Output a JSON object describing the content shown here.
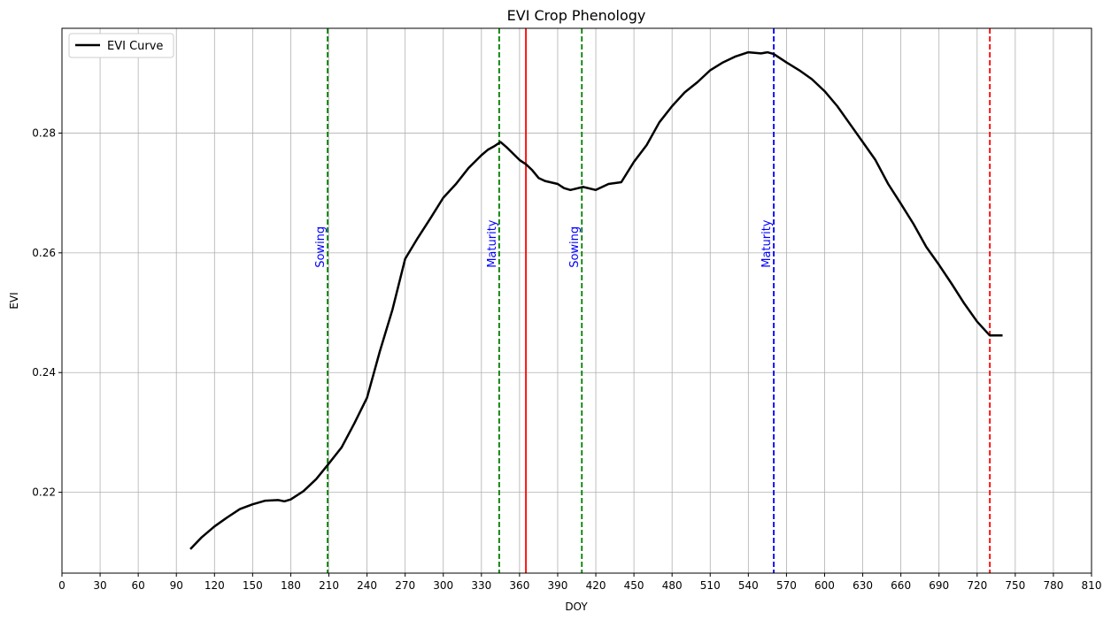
{
  "chart_data": {
    "type": "line",
    "title": "EVI Crop Phenology",
    "xlabel": "DOY",
    "ylabel": "EVI",
    "xlim": [
      0,
      810
    ],
    "ylim": [
      0.2065,
      0.2975
    ],
    "grid": true,
    "legend_position": "top-left",
    "x_ticks": [
      0,
      30,
      60,
      90,
      120,
      150,
      180,
      210,
      240,
      270,
      300,
      330,
      360,
      390,
      420,
      450,
      480,
      510,
      540,
      570,
      600,
      630,
      660,
      690,
      720,
      750,
      780,
      810
    ],
    "y_ticks": [
      0.22,
      0.24,
      0.26,
      0.28
    ],
    "y_tick_labels": [
      "0.22",
      "0.24",
      "0.26",
      "0.28"
    ],
    "series": [
      {
        "name": "EVI Curve",
        "color": "#000000",
        "x": [
          101,
          110,
          120,
          130,
          140,
          150,
          160,
          170,
          175,
          180,
          190,
          200,
          210,
          220,
          230,
          240,
          250,
          260,
          270,
          280,
          290,
          300,
          310,
          320,
          330,
          335,
          340,
          345,
          350,
          360,
          365,
          370,
          375,
          380,
          390,
          395,
          400,
          410,
          420,
          430,
          440,
          450,
          460,
          470,
          480,
          490,
          500,
          510,
          520,
          530,
          540,
          545,
          550,
          555,
          560,
          570,
          580,
          590,
          600,
          610,
          620,
          630,
          640,
          650,
          660,
          670,
          680,
          690,
          700,
          710,
          720,
          730,
          740
        ],
        "y": [
          0.2105,
          0.2125,
          0.2143,
          0.2158,
          0.2172,
          0.218,
          0.2186,
          0.2187,
          0.2185,
          0.2188,
          0.2202,
          0.2222,
          0.2248,
          0.2275,
          0.2315,
          0.2358,
          0.2435,
          0.2505,
          0.259,
          0.2625,
          0.2658,
          0.2692,
          0.2715,
          0.2742,
          0.2763,
          0.2772,
          0.2778,
          0.2785,
          0.2776,
          0.2755,
          0.2748,
          0.2738,
          0.2725,
          0.272,
          0.2715,
          0.2708,
          0.2705,
          0.271,
          0.2705,
          0.2715,
          0.2718,
          0.2752,
          0.278,
          0.2818,
          0.2845,
          0.2868,
          0.2885,
          0.2905,
          0.2918,
          0.2928,
          0.2935,
          0.2934,
          0.2933,
          0.2935,
          0.2932,
          0.2918,
          0.2905,
          0.289,
          0.287,
          0.2845,
          0.2815,
          0.2785,
          0.2755,
          0.2715,
          0.2682,
          0.2648,
          0.261,
          0.258,
          0.2548,
          0.2515,
          0.2485,
          0.2462,
          0.2462
        ]
      }
    ],
    "vertical_lines": [
      {
        "x": 209,
        "color": "#008000",
        "style": "dashed",
        "label": "Sowing",
        "label_color": "#0000ff"
      },
      {
        "x": 344,
        "color": "#008000",
        "style": "dashed",
        "label": "Maturity",
        "label_color": "#0000ff"
      },
      {
        "x": 365,
        "color": "#ff0000",
        "style": "solid",
        "label": "",
        "label_color": ""
      },
      {
        "x": 409,
        "color": "#008000",
        "style": "dashed",
        "label": "Sowing",
        "label_color": "#0000ff"
      },
      {
        "x": 560,
        "color": "#0000ff",
        "style": "dashed",
        "label": "Maturity",
        "label_color": "#0000ff"
      },
      {
        "x": 730,
        "color": "#ff0000",
        "style": "dashed",
        "label": "",
        "label_color": ""
      }
    ],
    "annotation_y": 0.2575
  }
}
